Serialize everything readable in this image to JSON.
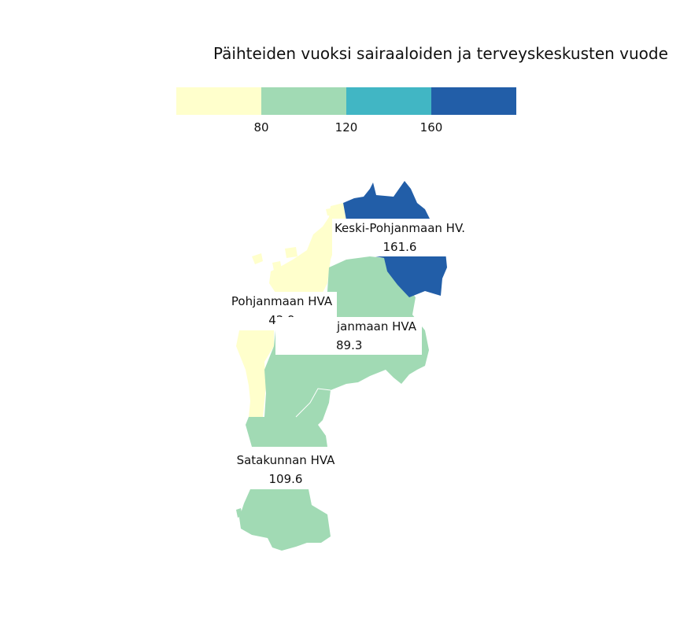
{
  "title": "Päihteiden vuoksi sairaaloiden ja terveyskeskusten vuode",
  "colors": {
    "bin_1": "#ffffcc",
    "bin_2": "#a1dab4",
    "bin_3": "#41b6c4",
    "bin_4": "#225ea8"
  },
  "legend": {
    "breaks": [
      "80",
      "120",
      "160"
    ]
  },
  "regions": [
    {
      "name": "Keski-Pohjanmaan HV.",
      "value": "161.6"
    },
    {
      "name": "Pohjanmaan HVA",
      "value": "42.9"
    },
    {
      "name": "janmaan HVA",
      "value": "89.3"
    },
    {
      "name": "Satakunnan HVA",
      "value": "109.6"
    }
  ]
}
